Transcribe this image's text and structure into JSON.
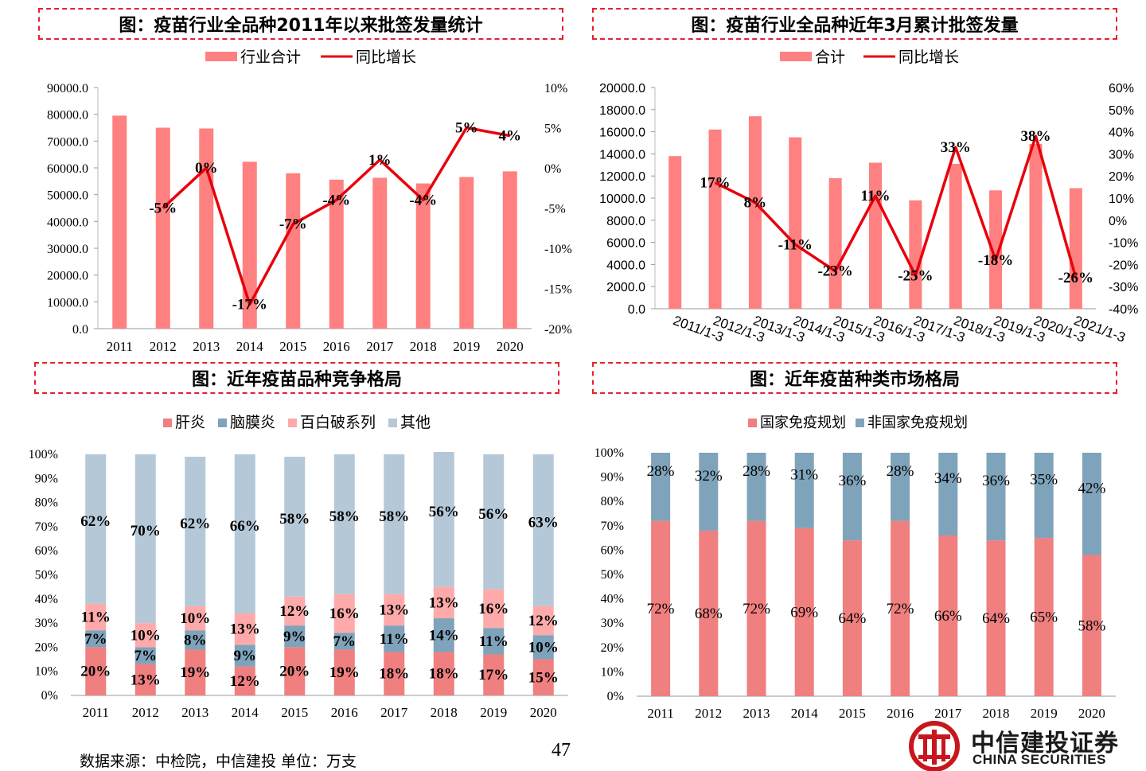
{
  "page_number": "47",
  "footer_source": "数据来源：中检院，中信建投 单位：万支",
  "logo": {
    "cn": "中信建投证券",
    "en": "CHINA SECURITIES",
    "color": "#c8161d"
  },
  "colors": {
    "bar": "#ff8080",
    "line": "#e8000b",
    "blue": "#7fa3bb",
    "pink": "#ffaaaa",
    "light_blue": "#b4c8d8",
    "red_stack": "#f07f80"
  },
  "chart_data": [
    {
      "id": "c1",
      "type": "bar+line",
      "title": "图：疫苗行业全品种2011年以来批签发量统计",
      "legend": [
        "行业合计",
        "同比增长"
      ],
      "categories": [
        "2011",
        "2012",
        "2013",
        "2014",
        "2015",
        "2016",
        "2017",
        "2018",
        "2019",
        "2020"
      ],
      "bar_values": [
        79500,
        75000,
        74700,
        62300,
        58000,
        55600,
        56300,
        54200,
        56600,
        58700
      ],
      "line_values": [
        null,
        -5,
        0,
        -17,
        -7,
        -4,
        1,
        -4,
        5,
        4
      ],
      "line_labels": [
        "",
        "-5%",
        "0%",
        "-17%",
        "-7%",
        "-4%",
        "1%",
        "-4%",
        "5%",
        "4%"
      ],
      "ylim": [
        0,
        90000
      ],
      "y_ticks": [
        "0.0",
        "10000.0",
        "20000.0",
        "30000.0",
        "40000.0",
        "50000.0",
        "60000.0",
        "70000.0",
        "80000.0",
        "90000.0"
      ],
      "y2lim": [
        -20,
        10
      ],
      "y2_ticks": [
        "-20%",
        "-15%",
        "-10%",
        "-5%",
        "0%",
        "5%",
        "10%"
      ]
    },
    {
      "id": "c2",
      "type": "bar+line",
      "title": "图：疫苗行业全品种近年3月累计批签发量",
      "legend": [
        "合计",
        "同比增长"
      ],
      "categories": [
        "2011/1-3",
        "2012/1-3",
        "2013/1-3",
        "2014/1-3",
        "2015/1-3",
        "2016/1-3",
        "2017/1-3",
        "2018/1-3",
        "2019/1-3",
        "2020/1-3",
        "2021/1-3"
      ],
      "bar_values": [
        13800,
        16200,
        17400,
        15500,
        11800,
        13200,
        9800,
        13100,
        10700,
        14900,
        10900
      ],
      "line_values": [
        null,
        17,
        8,
        -11,
        -23,
        11,
        -25,
        33,
        -18,
        38,
        -26
      ],
      "line_labels": [
        "",
        "17%",
        "8%",
        "-11%",
        "-23%",
        "11%",
        "-25%",
        "33%",
        "-18%",
        "38%",
        "-26%"
      ],
      "ylim": [
        0,
        20000
      ],
      "y_ticks": [
        "0.0",
        "2000.0",
        "4000.0",
        "6000.0",
        "8000.0",
        "10000.0",
        "12000.0",
        "14000.0",
        "16000.0",
        "18000.0",
        "20000.0"
      ],
      "y2lim": [
        -40,
        60
      ],
      "y2_ticks": [
        "-40%",
        "-30%",
        "-20%",
        "-10%",
        "0%",
        "10%",
        "20%",
        "30%",
        "40%",
        "50%",
        "60%"
      ]
    },
    {
      "id": "c3",
      "type": "stacked_bar_100",
      "title": "图：近年疫苗品种竞争格局",
      "categories": [
        "2011",
        "2012",
        "2013",
        "2014",
        "2015",
        "2016",
        "2017",
        "2018",
        "2019",
        "2020"
      ],
      "y_ticks": [
        "0%",
        "10%",
        "20%",
        "30%",
        "40%",
        "50%",
        "60%",
        "70%",
        "80%",
        "90%",
        "100%"
      ],
      "series": [
        {
          "name": "肝炎",
          "values": [
            20,
            13,
            19,
            12,
            20,
            19,
            18,
            18,
            17,
            15
          ],
          "labels": [
            "20%",
            "13%",
            "19%",
            "12%",
            "20%",
            "19%",
            "18%",
            "18%",
            "17%",
            "15%"
          ]
        },
        {
          "name": "脑膜炎",
          "values": [
            7,
            7,
            8,
            9,
            9,
            7,
            11,
            14,
            11,
            10
          ],
          "labels": [
            "7%",
            "7%",
            "8%",
            "9%",
            "9%",
            "7%",
            "11%",
            "14%",
            "11%",
            "10%"
          ]
        },
        {
          "name": "百白破系列",
          "values": [
            11,
            10,
            10,
            13,
            12,
            16,
            13,
            13,
            16,
            12
          ],
          "labels": [
            "11%",
            "10%",
            "10%",
            "13%",
            "12%",
            "16%",
            "13%",
            "13%",
            "16%",
            "12%"
          ]
        },
        {
          "name": "其他",
          "values": [
            62,
            70,
            62,
            66,
            58,
            58,
            58,
            56,
            56,
            63
          ],
          "labels": [
            "62%",
            "70%",
            "62%",
            "66%",
            "58%",
            "58%",
            "58%",
            "56%",
            "56%",
            "63%"
          ]
        }
      ]
    },
    {
      "id": "c4",
      "type": "stacked_bar_100",
      "title": "图：近年疫苗种类市场格局",
      "categories": [
        "2011",
        "2012",
        "2013",
        "2014",
        "2015",
        "2016",
        "2017",
        "2018",
        "2019",
        "2020"
      ],
      "y_ticks": [
        "0%",
        "10%",
        "20%",
        "30%",
        "40%",
        "50%",
        "60%",
        "70%",
        "80%",
        "90%",
        "100%"
      ],
      "series": [
        {
          "name": "国家免疫规划",
          "values": [
            72,
            68,
            72,
            69,
            64,
            72,
            66,
            64,
            65,
            58
          ],
          "labels": [
            "72%",
            "68%",
            "72%",
            "69%",
            "64%",
            "72%",
            "66%",
            "64%",
            "65%",
            "58%"
          ]
        },
        {
          "name": "非国家免疫规划",
          "values": [
            28,
            32,
            28,
            31,
            36,
            28,
            34,
            36,
            35,
            42
          ],
          "labels": [
            "28%",
            "32%",
            "28%",
            "31%",
            "36%",
            "28%",
            "34%",
            "36%",
            "35%",
            "42%"
          ]
        }
      ]
    }
  ]
}
